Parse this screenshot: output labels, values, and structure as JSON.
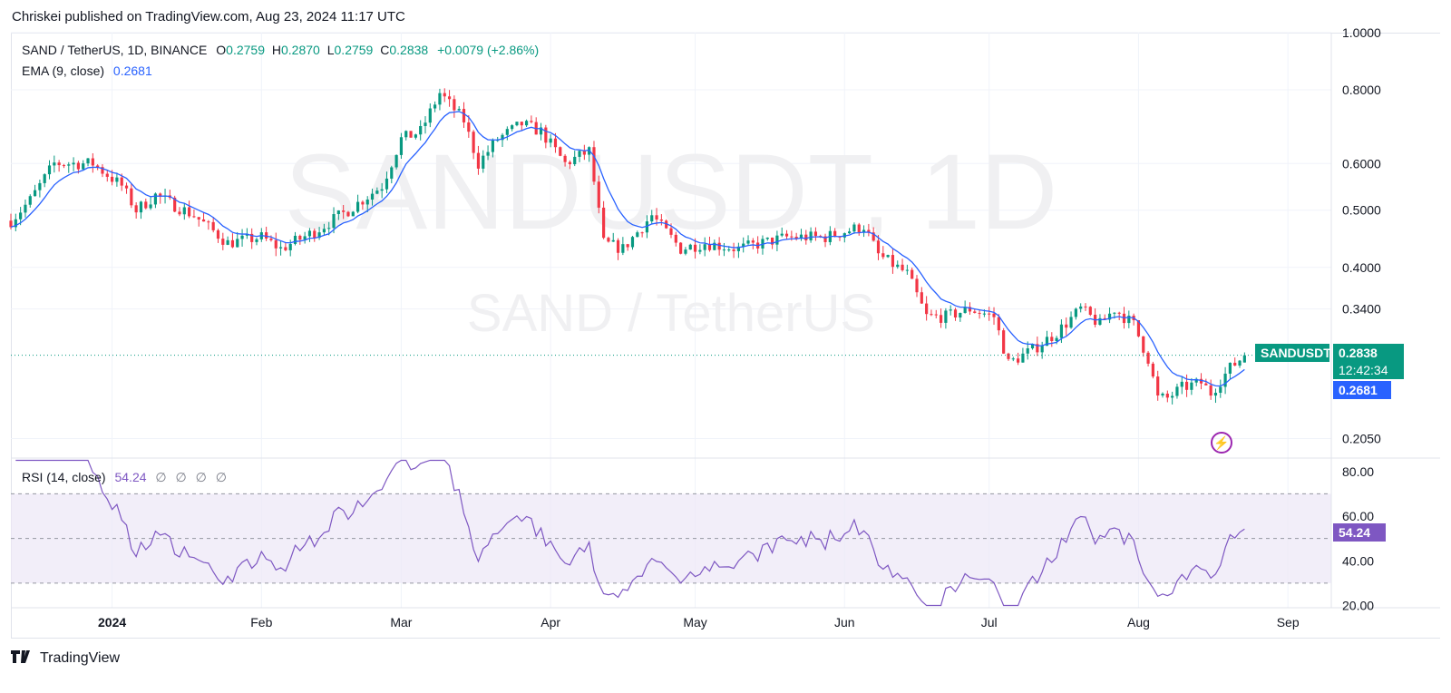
{
  "header": {
    "published": "Chriskei published on TradingView.com, Aug 23, 2024 11:17 UTC"
  },
  "legend": {
    "symbol": "SAND / TetherUS, 1D, BINANCE",
    "o_label": "O",
    "o": "0.2759",
    "h_label": "H",
    "h": "0.2870",
    "l_label": "L",
    "l": "0.2759",
    "c_label": "C",
    "c": "0.2838",
    "change": "+0.0079 (+2.86%)",
    "ema_label": "EMA (9, close)",
    "ema_value": "0.2681",
    "rsi_label": "RSI (14, close)",
    "rsi_value": "54.24",
    "rsi_symbols": [
      "∅",
      "∅",
      "∅",
      "∅"
    ]
  },
  "watermark": {
    "line1": "SANDUSDT, 1D",
    "line2": "SAND / TetherUS"
  },
  "price_tags": {
    "symbol": "SANDUSDT",
    "last": "0.2838",
    "countdown": "12:42:34",
    "ema": "0.2681",
    "rsi": "54.24"
  },
  "footer": {
    "brand": "TradingView",
    "logo": "tradingview-logo"
  },
  "colors": {
    "up": "#089981",
    "down": "#f23645",
    "ema": "#2962ff",
    "rsi": "#7e57c2",
    "rsi_band": "#ede7f6"
  },
  "chart_data": [
    {
      "type": "candlestick",
      "scale": "log",
      "y_ticks": [
        "1.0000",
        "0.8000",
        "0.6000",
        "0.5000",
        "0.4000",
        "0.3400",
        "0.2050"
      ],
      "y_tick_values": [
        1.0,
        0.8,
        0.6,
        0.5,
        0.4,
        0.34,
        0.205
      ],
      "ylim": [
        0.19,
        1.0
      ],
      "x_ticks": [
        {
          "label": "2024",
          "date": "2024-01-01"
        },
        {
          "label": "Feb",
          "date": "2024-02-01"
        },
        {
          "label": "Mar",
          "date": "2024-03-01"
        },
        {
          "label": "Apr",
          "date": "2024-04-01"
        },
        {
          "label": "May",
          "date": "2024-05-01"
        },
        {
          "label": "Jun",
          "date": "2024-06-01"
        },
        {
          "label": "Jul",
          "date": "2024-07-01"
        },
        {
          "label": "Aug",
          "date": "2024-08-01"
        },
        {
          "label": "Sep",
          "date": "2024-09-01"
        }
      ],
      "xlim": [
        "2023-12-11",
        "2024-09-10"
      ],
      "close_keypoints": [
        [
          "2023-12-11",
          0.48
        ],
        [
          "2023-12-15",
          0.52
        ],
        [
          "2023-12-20",
          0.6
        ],
        [
          "2023-12-28",
          0.6
        ],
        [
          "2024-01-03",
          0.55
        ],
        [
          "2024-01-06",
          0.5
        ],
        [
          "2024-01-10",
          0.53
        ],
        [
          "2024-01-18",
          0.49
        ],
        [
          "2024-01-25",
          0.44
        ],
        [
          "2024-02-01",
          0.45
        ],
        [
          "2024-02-05",
          0.43
        ],
        [
          "2024-02-12",
          0.46
        ],
        [
          "2024-02-19",
          0.5
        ],
        [
          "2024-02-26",
          0.55
        ],
        [
          "2024-03-01",
          0.66
        ],
        [
          "2024-03-05",
          0.68
        ],
        [
          "2024-03-09",
          0.79
        ],
        [
          "2024-03-14",
          0.71
        ],
        [
          "2024-03-17",
          0.6
        ],
        [
          "2024-03-21",
          0.66
        ],
        [
          "2024-03-26",
          0.7
        ],
        [
          "2024-03-30",
          0.68
        ],
        [
          "2024-04-04",
          0.6
        ],
        [
          "2024-04-09",
          0.63
        ],
        [
          "2024-04-12",
          0.44
        ],
        [
          "2024-04-16",
          0.43
        ],
        [
          "2024-04-22",
          0.49
        ],
        [
          "2024-04-28",
          0.43
        ],
        [
          "2024-05-03",
          0.44
        ],
        [
          "2024-05-10",
          0.43
        ],
        [
          "2024-05-15",
          0.44
        ],
        [
          "2024-05-20",
          0.45
        ],
        [
          "2024-05-28",
          0.45
        ],
        [
          "2024-06-05",
          0.47
        ],
        [
          "2024-06-08",
          0.42
        ],
        [
          "2024-06-14",
          0.39
        ],
        [
          "2024-06-18",
          0.33
        ],
        [
          "2024-06-22",
          0.33
        ],
        [
          "2024-06-27",
          0.34
        ],
        [
          "2024-07-02",
          0.33
        ],
        [
          "2024-07-05",
          0.275
        ],
        [
          "2024-07-10",
          0.29
        ],
        [
          "2024-07-15",
          0.31
        ],
        [
          "2024-07-20",
          0.34
        ],
        [
          "2024-07-24",
          0.32
        ],
        [
          "2024-07-27",
          0.34
        ],
        [
          "2024-07-31",
          0.32
        ],
        [
          "2024-08-03",
          0.28
        ],
        [
          "2024-08-05",
          0.24
        ],
        [
          "2024-08-07",
          0.24
        ],
        [
          "2024-08-10",
          0.25
        ],
        [
          "2024-08-14",
          0.255
        ],
        [
          "2024-08-16",
          0.245
        ],
        [
          "2024-08-20",
          0.27
        ],
        [
          "2024-08-23",
          0.2838
        ]
      ],
      "last": {
        "date": "2024-08-23",
        "open": 0.2759,
        "high": 0.287,
        "low": 0.2759,
        "close": 0.2838
      },
      "ema": {
        "name": "EMA (9, close)",
        "period": 9,
        "last": 0.2681
      }
    },
    {
      "type": "line",
      "name": "RSI (14, close)",
      "y_ticks": [
        "80.00",
        "60.00",
        "40.00",
        "20.00"
      ],
      "y_tick_values": [
        80,
        60,
        40,
        20
      ],
      "ylim": [
        19,
        86
      ],
      "bands": [
        70,
        50,
        30
      ],
      "last": 54.24
    }
  ]
}
